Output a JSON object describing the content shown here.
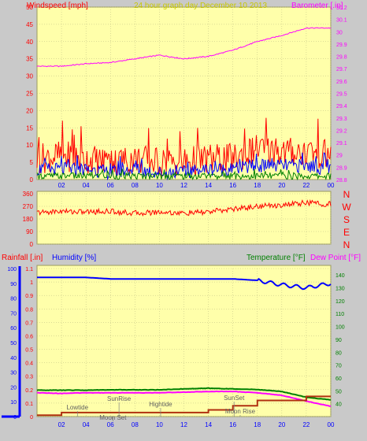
{
  "header": {
    "left": "Windspeed [mph]",
    "center": "24 hour graph day   December 10 2013",
    "right": "Barometer [.in]"
  },
  "colors": {
    "background": "#c9c9c9",
    "plot": "#ffffaa",
    "red": "#ff0000",
    "blue": "#0000ff",
    "green": "#008000",
    "magenta": "#ff00ff",
    "brown": "#b03010",
    "label_yellow": "#c8c800"
  },
  "compass": [
    "N",
    "W",
    "S",
    "E",
    "N"
  ],
  "x_ticks": [
    "02",
    "04",
    "06",
    "08",
    "10",
    "12",
    "14",
    "16",
    "18",
    "20",
    "22",
    "00"
  ],
  "chart_data": [
    {
      "type": "line",
      "panel": "wind-barometer",
      "left_axis": {
        "label": "Windspeed [mph]",
        "ticks": [
          "0",
          "5",
          "10",
          "15",
          "20",
          "25",
          "30",
          "35",
          "40",
          "45",
          "50"
        ],
        "ylim": [
          0,
          50
        ]
      },
      "right_axis": {
        "label": "Barometer [.in]",
        "ticks": [
          "28.8",
          "28.9",
          "29",
          "29.1",
          "29.2",
          "29.3",
          "29.4",
          "29.5",
          "29.6",
          "29.7",
          "29.8",
          "29.9",
          "30",
          "30.1",
          "30.2"
        ],
        "ylim": [
          28.8,
          30.2
        ]
      },
      "x": [
        0,
        2,
        4,
        6,
        8,
        10,
        12,
        14,
        16,
        18,
        20,
        22,
        24
      ],
      "series": [
        {
          "color": "#ff00ff",
          "axis": "right",
          "values": [
            29.72,
            29.72,
            29.74,
            29.75,
            29.78,
            29.81,
            29.78,
            29.8,
            29.85,
            29.92,
            29.97,
            30.03,
            30.03
          ]
        },
        {
          "color": "#ff0000",
          "axis": "left",
          "values": [
            6,
            7,
            6,
            5,
            6,
            5,
            5,
            6,
            6,
            9,
            8,
            8,
            7
          ]
        },
        {
          "color": "#0000ff",
          "axis": "left",
          "values": [
            3,
            3,
            3,
            2,
            3,
            2,
            2,
            3,
            3,
            4,
            4,
            4,
            3
          ]
        },
        {
          "color": "#008000",
          "axis": "left",
          "values": [
            1,
            1,
            1,
            1,
            1,
            1,
            1,
            1,
            1,
            1,
            1,
            1,
            1
          ]
        }
      ]
    },
    {
      "type": "line",
      "panel": "wind-direction",
      "left_axis": {
        "ticks": [
          "0",
          "90",
          "180",
          "270",
          "360"
        ],
        "ylim": [
          0,
          360
        ]
      },
      "x": [
        0,
        2,
        4,
        6,
        8,
        10,
        12,
        14,
        16,
        18,
        20,
        22,
        24
      ],
      "series": [
        {
          "color": "#ff0000",
          "values": [
            225,
            235,
            230,
            235,
            220,
            230,
            220,
            230,
            250,
            270,
            280,
            295,
            285
          ]
        }
      ]
    },
    {
      "type": "line",
      "panel": "rain-humidity-temperature",
      "header": {
        "rain_label": "Rainfall [.in]",
        "humidity_label": "Humidity [%]",
        "temp_label": "Temperature [°F]",
        "dew_label": "Dew Point [°F]"
      },
      "rain_axis": {
        "ticks": [
          "0",
          "0.1",
          "0.2",
          "0.3",
          "0.4",
          "0.5",
          "0.6",
          "0.7",
          "0.8",
          "0.9",
          "1",
          "1.1"
        ],
        "ylim": [
          0,
          1.1
        ]
      },
      "humidity_axis": {
        "ticks": [
          "0",
          "10",
          "20",
          "30",
          "40",
          "50",
          "60",
          "70",
          "80",
          "90",
          "100"
        ],
        "ylim": [
          0,
          100
        ]
      },
      "temp_axis": {
        "ticks": [
          "40",
          "50",
          "60",
          "70",
          "80",
          "90",
          "100",
          "110",
          "120",
          "130",
          "140"
        ],
        "ylim": [
          30,
          145
        ]
      },
      "x": [
        0,
        2,
        4,
        6,
        8,
        10,
        12,
        14,
        16,
        18,
        20,
        22,
        24
      ],
      "series": [
        {
          "color": "#0000ff",
          "axis": "humidity",
          "values": [
            94,
            94,
            94,
            93,
            93,
            93,
            93,
            93,
            93,
            92,
            89,
            87,
            90
          ]
        },
        {
          "color": "#008000",
          "axis": "temp",
          "values": [
            50.5,
            50.5,
            50.5,
            50.8,
            50.8,
            50.8,
            51.5,
            52,
            51.5,
            51,
            49.5,
            45,
            43
          ]
        },
        {
          "color": "#ff00ff",
          "axis": "temp",
          "values": [
            48.5,
            48,
            48.5,
            48.5,
            48.5,
            48.5,
            49,
            49.5,
            49.5,
            48.5,
            46.5,
            42,
            38
          ]
        },
        {
          "color": "#b03010",
          "axis": "rain",
          "values": [
            0.01,
            0.03,
            0.03,
            0.03,
            0.03,
            0.03,
            0.03,
            0.05,
            0.08,
            0.12,
            0.12,
            0.15,
            0.15
          ]
        }
      ],
      "annotations": [
        {
          "text": "SunRise",
          "x": 6.7
        },
        {
          "text": "Lowtide",
          "x": 3.3
        },
        {
          "text": "Moon Set",
          "x": 6.2
        },
        {
          "text": "Hightide",
          "x": 10.1
        },
        {
          "text": "SunSet",
          "x": 16.1
        },
        {
          "text": "Moon Rise",
          "x": 16.6
        }
      ]
    }
  ]
}
